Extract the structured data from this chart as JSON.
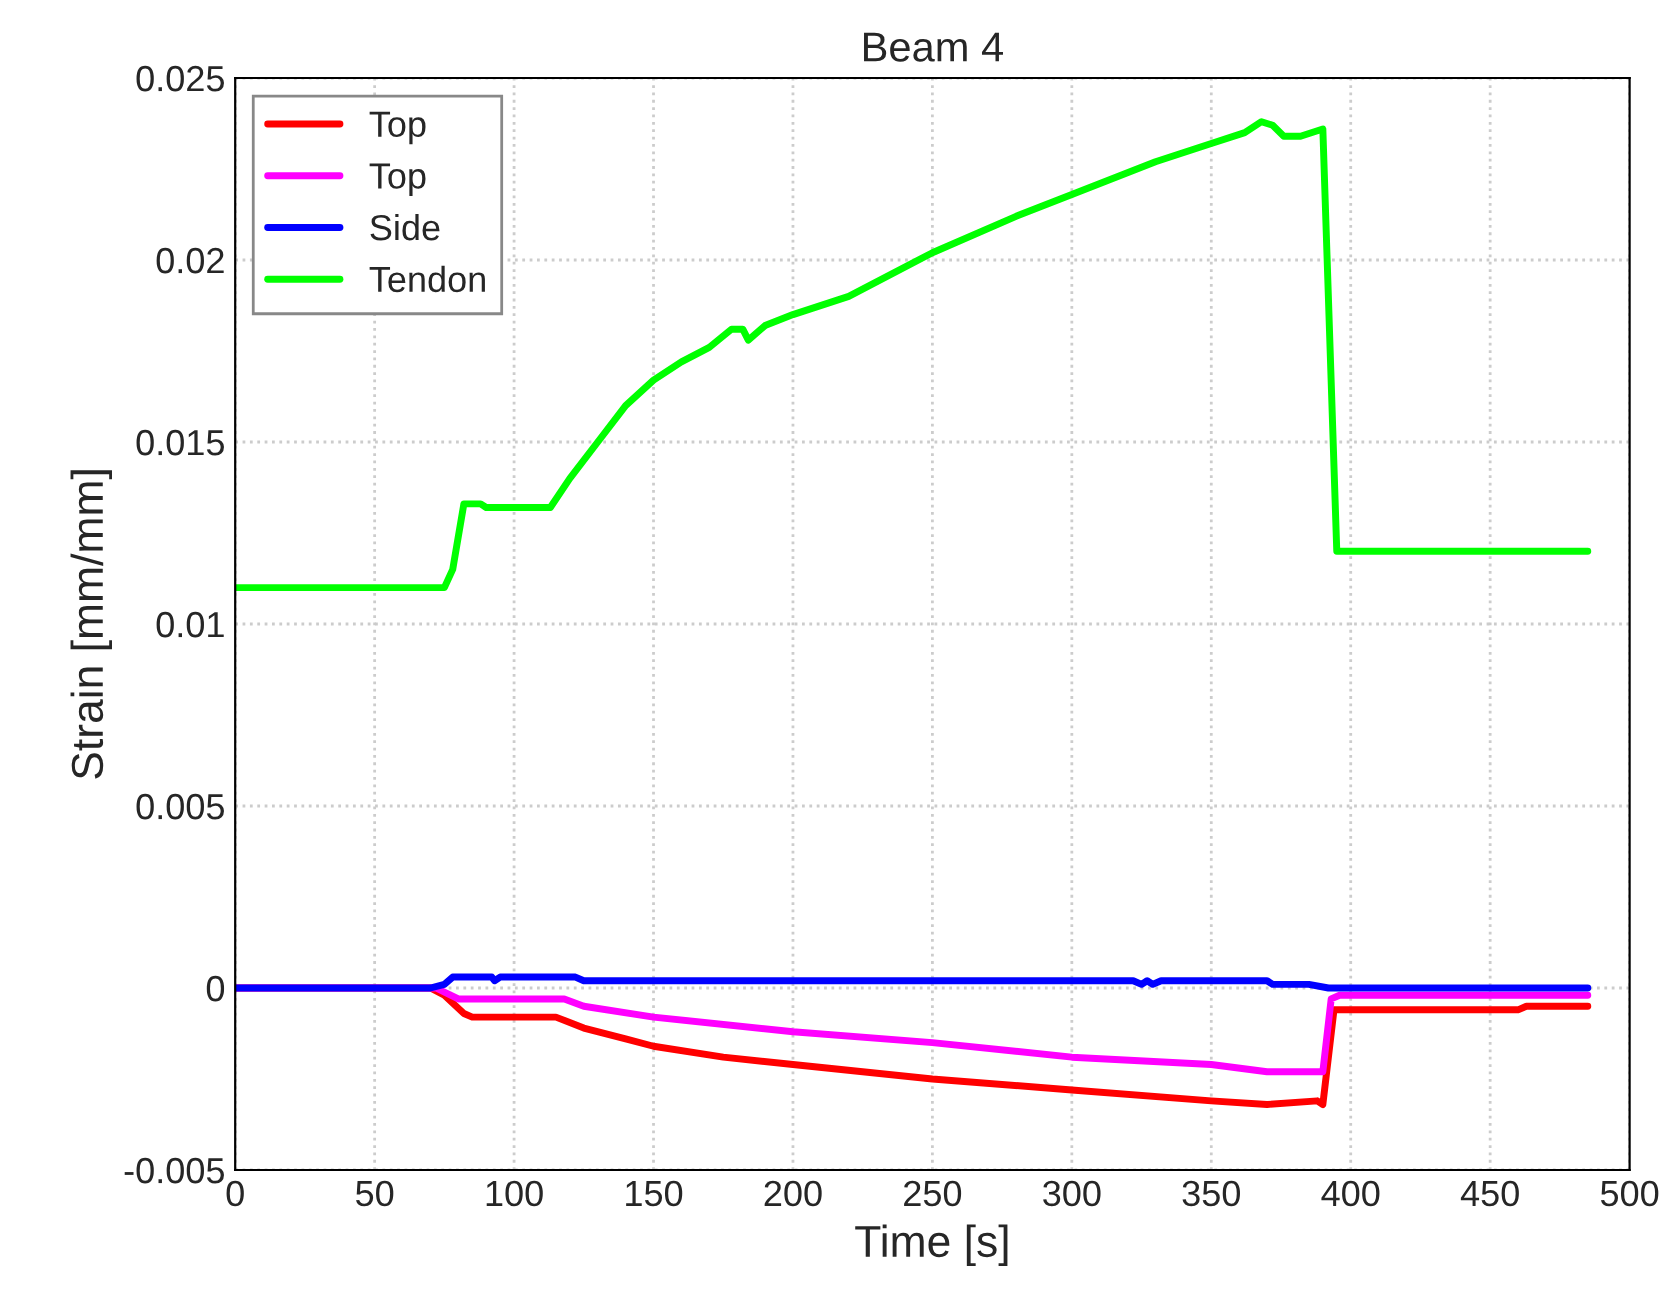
{
  "chart_data": {
    "type": "line",
    "title": "Beam 4",
    "xlabel": "Time [s]",
    "ylabel": "Strain [mm/mm]",
    "xlim": [
      0,
      500
    ],
    "xticks": [
      0,
      50,
      100,
      150,
      200,
      250,
      300,
      350,
      400,
      450,
      500
    ],
    "ylim": [
      -0.005,
      0.025
    ],
    "yticks": [
      -0.005,
      0,
      0.005,
      0.01,
      0.015,
      0.02,
      0.025
    ],
    "grid": true,
    "legend": "top left",
    "marker": "none",
    "line_style": "solid",
    "series": [
      {
        "name": "Top",
        "color": "#ff0000",
        "x": [
          0,
          70,
          75,
          82,
          85,
          115,
          125,
          140,
          150,
          175,
          200,
          250,
          300,
          350,
          370,
          388,
          390,
          394,
          460,
          463,
          485
        ],
        "values": [
          0,
          0,
          -0.0002,
          -0.0007,
          -0.0008,
          -0.0008,
          -0.0011,
          -0.0014,
          -0.0016,
          -0.0019,
          -0.0021,
          -0.0025,
          -0.0028,
          -0.0031,
          -0.0032,
          -0.0031,
          -0.0032,
          -0.0006,
          -0.0006,
          -0.0005,
          -0.0005
        ]
      },
      {
        "name": "Top",
        "color": "#ff00ff",
        "x": [
          0,
          72,
          80,
          118,
          125,
          150,
          200,
          250,
          300,
          350,
          370,
          390,
          393,
          396,
          485
        ],
        "values": [
          0,
          0,
          -0.0003,
          -0.0003,
          -0.0005,
          -0.0008,
          -0.0012,
          -0.0015,
          -0.0019,
          -0.0021,
          -0.0023,
          -0.0023,
          -0.0003,
          -0.0002,
          -0.0002
        ]
      },
      {
        "name": "Side",
        "color": "#0000ff",
        "x": [
          0,
          70,
          75,
          78,
          92,
          93,
          95,
          122,
          125,
          322,
          325,
          327,
          329,
          332,
          370,
          372,
          385,
          392,
          485
        ],
        "values": [
          0,
          0,
          0.0001,
          0.0003,
          0.0003,
          0.0002,
          0.0003,
          0.0003,
          0.0002,
          0.0002,
          0.0001,
          0.0002,
          0.0001,
          0.0002,
          0.0002,
          0.0001,
          0.0001,
          0,
          0
        ]
      },
      {
        "name": "Tendon",
        "color": "#00ff00",
        "x": [
          0,
          75,
          78,
          82,
          88,
          90,
          113,
          120,
          130,
          140,
          150,
          160,
          170,
          178,
          182,
          184,
          190,
          200,
          220,
          250,
          280,
          300,
          330,
          350,
          362,
          368,
          372,
          376,
          382,
          390,
          395,
          485
        ],
        "values": [
          0.011,
          0.011,
          0.0115,
          0.0133,
          0.0133,
          0.0132,
          0.0132,
          0.014,
          0.015,
          0.016,
          0.0167,
          0.0172,
          0.0176,
          0.0181,
          0.0181,
          0.0178,
          0.0182,
          0.0185,
          0.019,
          0.0202,
          0.0212,
          0.0218,
          0.0227,
          0.0232,
          0.0235,
          0.0238,
          0.0237,
          0.0234,
          0.0234,
          0.0236,
          0.012,
          0.012
        ]
      }
    ]
  }
}
